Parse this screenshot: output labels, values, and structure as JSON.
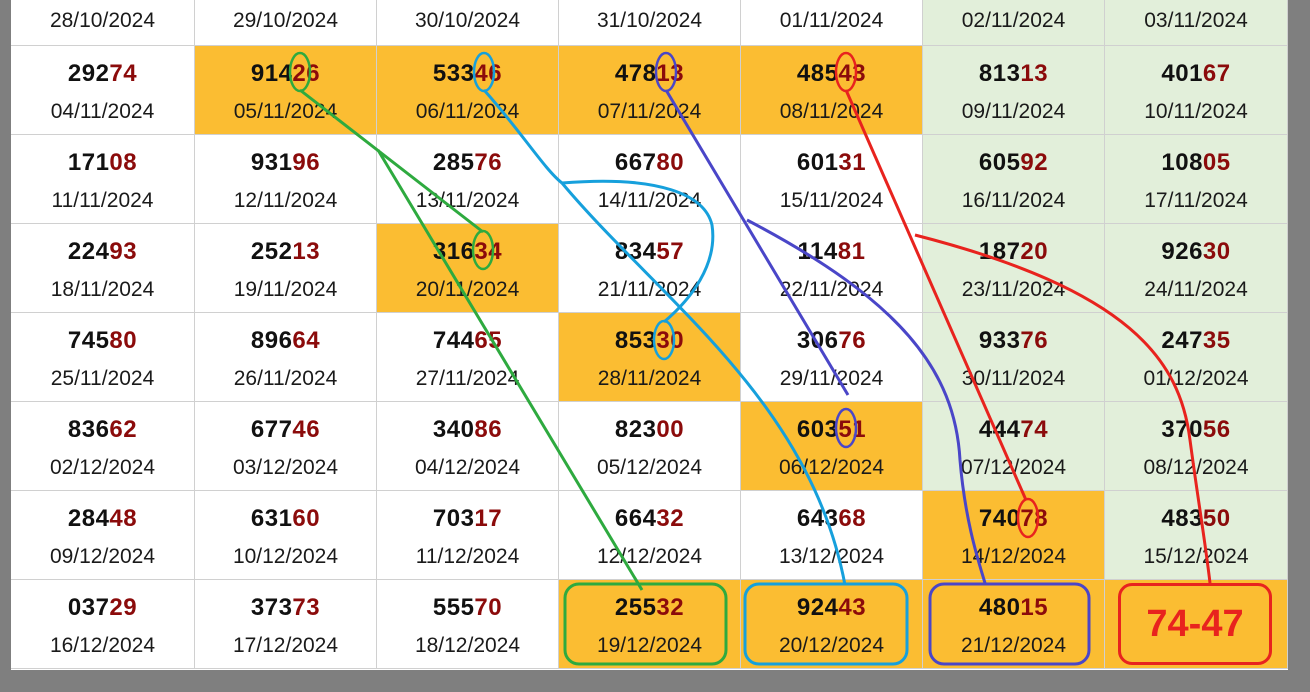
{
  "header_dates": [
    "28/10/2024",
    "29/10/2024",
    "30/10/2024",
    "31/10/2024",
    "01/11/2024",
    "02/11/2024",
    "03/11/2024"
  ],
  "rows": [
    [
      {
        "head": "292",
        "tail": "74",
        "date": "04/11/2024"
      },
      {
        "head": "914",
        "tail": "26",
        "date": "05/11/2024",
        "highlight": "orange"
      },
      {
        "head": "533",
        "tail": "46",
        "date": "06/11/2024",
        "highlight": "orange"
      },
      {
        "head": "478",
        "tail": "13",
        "date": "07/11/2024",
        "highlight": "orange"
      },
      {
        "head": "485",
        "tail": "43",
        "date": "08/11/2024",
        "highlight": "orange"
      },
      {
        "head": "813",
        "tail": "13",
        "date": "09/11/2024"
      },
      {
        "head": "401",
        "tail": "67",
        "date": "10/11/2024"
      }
    ],
    [
      {
        "head": "171",
        "tail": "08",
        "date": "11/11/2024"
      },
      {
        "head": "931",
        "tail": "96",
        "date": "12/11/2024"
      },
      {
        "head": "285",
        "tail": "76",
        "date": "13/11/2024"
      },
      {
        "head": "667",
        "tail": "80",
        "date": "14/11/2024"
      },
      {
        "head": "601",
        "tail": "31",
        "date": "15/11/2024"
      },
      {
        "head": "605",
        "tail": "92",
        "date": "16/11/2024"
      },
      {
        "head": "108",
        "tail": "05",
        "date": "17/11/2024"
      }
    ],
    [
      {
        "head": "224",
        "tail": "93",
        "date": "18/11/2024"
      },
      {
        "head": "252",
        "tail": "13",
        "date": "19/11/2024"
      },
      {
        "head": "316",
        "tail": "34",
        "date": "20/11/2024",
        "highlight": "orange"
      },
      {
        "head": "834",
        "tail": "57",
        "date": "21/11/2024"
      },
      {
        "head": "114",
        "tail": "81",
        "date": "22/11/2024"
      },
      {
        "head": "187",
        "tail": "20",
        "date": "23/11/2024"
      },
      {
        "head": "926",
        "tail": "30",
        "date": "24/11/2024"
      }
    ],
    [
      {
        "head": "745",
        "tail": "80",
        "date": "25/11/2024"
      },
      {
        "head": "896",
        "tail": "64",
        "date": "26/11/2024"
      },
      {
        "head": "744",
        "tail": "65",
        "date": "27/11/2024"
      },
      {
        "head": "853",
        "tail": "30",
        "date": "28/11/2024",
        "highlight": "orange"
      },
      {
        "head": "306",
        "tail": "76",
        "date": "29/11/2024"
      },
      {
        "head": "933",
        "tail": "76",
        "date": "30/11/2024"
      },
      {
        "head": "247",
        "tail": "35",
        "date": "01/12/2024"
      }
    ],
    [
      {
        "head": "836",
        "tail": "62",
        "date": "02/12/2024"
      },
      {
        "head": "677",
        "tail": "46",
        "date": "03/12/2024"
      },
      {
        "head": "340",
        "tail": "86",
        "date": "04/12/2024"
      },
      {
        "head": "823",
        "tail": "00",
        "date": "05/12/2024"
      },
      {
        "head": "603",
        "tail": "51",
        "date": "06/12/2024",
        "highlight": "orange"
      },
      {
        "head": "444",
        "tail": "74",
        "date": "07/12/2024"
      },
      {
        "head": "370",
        "tail": "56",
        "date": "08/12/2024"
      }
    ],
    [
      {
        "head": "284",
        "tail": "48",
        "date": "09/12/2024"
      },
      {
        "head": "631",
        "tail": "60",
        "date": "10/12/2024"
      },
      {
        "head": "703",
        "tail": "17",
        "date": "11/12/2024"
      },
      {
        "head": "664",
        "tail": "32",
        "date": "12/12/2024"
      },
      {
        "head": "643",
        "tail": "68",
        "date": "13/12/2024"
      },
      {
        "head": "740",
        "tail": "78",
        "date": "14/12/2024",
        "highlight": "orange"
      },
      {
        "head": "483",
        "tail": "50",
        "date": "15/12/2024"
      }
    ],
    [
      {
        "head": "037",
        "tail": "29",
        "date": "16/12/2024"
      },
      {
        "head": "373",
        "tail": "73",
        "date": "17/12/2024"
      },
      {
        "head": "555",
        "tail": "70",
        "date": "18/12/2024"
      },
      {
        "head": "255",
        "tail": "32",
        "date": "19/12/2024",
        "highlight": "orange"
      },
      {
        "head": "924",
        "tail": "43",
        "date": "20/12/2024",
        "highlight": "orange"
      },
      {
        "head": "480",
        "tail": "15",
        "date": "21/12/2024",
        "highlight": "orange"
      },
      {
        "head": "",
        "tail": "",
        "date": "",
        "highlight": "orange",
        "result_cell": true
      }
    ]
  ],
  "result": "74-47",
  "colors": {
    "orange": "#fbbd32",
    "weekend_green": "#e2efda",
    "tail_red": "#8b0b0b",
    "line_green": "#2eaa3f",
    "line_cyan": "#16a0dc",
    "line_blue": "#4a46c8",
    "line_red": "#e8231e"
  }
}
